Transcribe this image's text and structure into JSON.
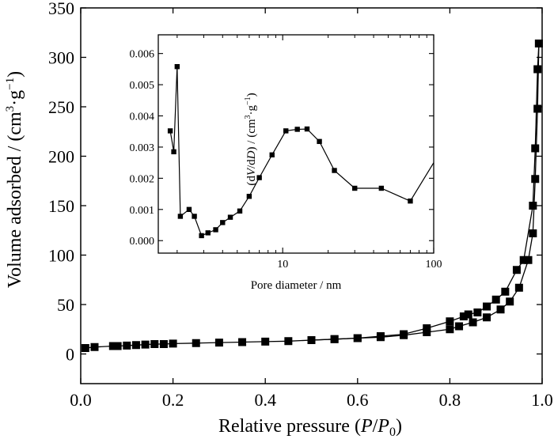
{
  "chart_data": [
    {
      "type": "line",
      "xlabel": "Relative pressure (P/P0)",
      "ylabel": "Volume adsorbed / (cm3·g−1)",
      "xlim": [
        0.0,
        1.0
      ],
      "ylim": [
        -30,
        350
      ],
      "xticks": [
        0.0,
        0.2,
        0.4,
        0.6,
        0.8,
        1.0
      ],
      "xtick_labels": [
        "0.0",
        "0.2",
        "0.4",
        "0.6",
        "0.8",
        "1.0"
      ],
      "yticks": [
        0,
        50,
        100,
        150,
        200,
        250,
        300,
        350
      ],
      "ytick_labels": [
        "0",
        "50",
        "100",
        "150",
        "200",
        "250",
        "300",
        "350"
      ],
      "series": [
        {
          "marker": "square",
          "x": [
            0.01,
            0.03,
            0.07,
            0.08,
            0.1,
            0.12,
            0.14,
            0.16,
            0.18,
            0.2,
            0.25,
            0.3,
            0.35,
            0.4,
            0.45,
            0.5,
            0.55,
            0.6,
            0.65,
            0.7,
            0.75,
            0.8,
            0.82,
            0.85,
            0.88,
            0.91,
            0.93,
            0.95,
            0.97,
            0.98,
            0.985,
            0.99,
            0.993
          ],
          "y": [
            6,
            7,
            8,
            8,
            8.5,
            9,
            9.5,
            10,
            10,
            10.5,
            11,
            11.5,
            12,
            12.5,
            13,
            14,
            15,
            16,
            17,
            19,
            22,
            25,
            28,
            32,
            37,
            45,
            53,
            67,
            95,
            122,
            177,
            248,
            314
          ]
        },
        {
          "marker": "square",
          "x": [
            0.993,
            0.99,
            0.985,
            0.98,
            0.96,
            0.945,
            0.92,
            0.9,
            0.88,
            0.86,
            0.84,
            0.83,
            0.8,
            0.75,
            0.7,
            0.65,
            0.6,
            0.55,
            0.5
          ],
          "y": [
            314,
            288,
            208,
            150,
            95,
            85,
            63,
            55,
            48,
            42,
            40,
            38,
            33,
            26,
            20,
            18,
            16,
            15,
            14
          ]
        }
      ]
    },
    {
      "type": "line",
      "xlabel": "Pore diameter / nm",
      "ylabel": "(dV/dD) / (cm3·g−1)",
      "xscale": "log",
      "xlim": [
        1.5,
        100
      ],
      "ylim": [
        -0.0004,
        0.0066
      ],
      "xticks": [
        10,
        100
      ],
      "xtick_labels": [
        "10",
        "100"
      ],
      "yticks": [
        0.0,
        0.001,
        0.002,
        0.003,
        0.004,
        0.005,
        0.006
      ],
      "ytick_labels": [
        "0.000",
        "0.001",
        "0.002",
        "0.003",
        "0.004",
        "0.005",
        "0.006"
      ],
      "series": [
        {
          "marker": "square",
          "x": [
            1.8,
            1.9,
            2.0,
            2.1,
            2.4,
            2.6,
            2.9,
            3.2,
            3.6,
            4.0,
            4.5,
            5.2,
            6.0,
            7.0,
            8.5,
            10.5,
            12.5,
            14.5,
            17.5,
            22.0,
            30.0,
            45.0,
            70.0,
            100.0
          ],
          "y": [
            0.00352,
            0.00285,
            0.00558,
            0.00078,
            0.001,
            0.00078,
            0.00016,
            0.00025,
            0.00035,
            0.00058,
            0.00075,
            0.00095,
            0.00142,
            0.00202,
            0.00275,
            0.00352,
            0.00357,
            0.00358,
            0.00318,
            0.00225,
            0.00168,
            0.00168,
            0.00127,
            0.0025
          ],
          "last_point_unmarked": true
        }
      ]
    }
  ]
}
